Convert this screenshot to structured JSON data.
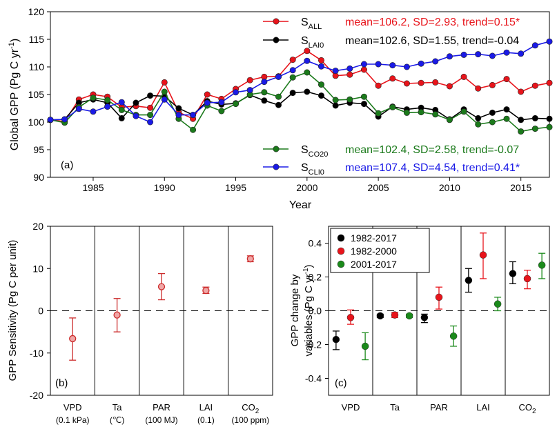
{
  "chart_data": [
    {
      "panel": "(a)",
      "type": "line",
      "xlabel": "Year",
      "ylabel": "Global GPP (Pg C yr",
      "ylabel_sup": "-1",
      "ylabel_end": ")",
      "xlim": [
        1982,
        2017
      ],
      "ylim": [
        90,
        120
      ],
      "xticks": [
        1985,
        1990,
        1995,
        2000,
        2005,
        2010,
        2015
      ],
      "yticks": [
        90,
        95,
        100,
        105,
        110,
        115,
        120
      ],
      "x": [
        1982,
        1983,
        1984,
        1985,
        1986,
        1987,
        1988,
        1989,
        1990,
        1991,
        1992,
        1993,
        1994,
        1995,
        1996,
        1997,
        1998,
        1999,
        2000,
        2001,
        2002,
        2003,
        2004,
        2005,
        2006,
        2007,
        2008,
        2009,
        2010,
        2011,
        2012,
        2013,
        2014,
        2015,
        2016,
        2017
      ],
      "series": [
        {
          "name": "S",
          "sub": "ALL",
          "color": "#e8141b",
          "stats": "mean=106.2, SD=2.93, trend=0.15*",
          "values": [
            100.4,
            100.1,
            104.1,
            105.0,
            104.6,
            102.7,
            102.9,
            102.6,
            107.2,
            101.8,
            100.6,
            105.0,
            104.2,
            106.0,
            107.6,
            108.2,
            108.3,
            111.3,
            112.9,
            111.2,
            108.4,
            108.6,
            109.5,
            106.6,
            107.9,
            107.0,
            107.1,
            107.2,
            106.5,
            108.2,
            106.1,
            106.7,
            107.8,
            105.5,
            106.6,
            107.1
          ]
        },
        {
          "name": "S",
          "sub": "LAI0",
          "color": "#000000",
          "stats": "mean=102.6, SD=1.55, trend=-0.04",
          "values": [
            100.4,
            100.5,
            103.5,
            104.1,
            103.5,
            100.7,
            103.5,
            104.8,
            104.7,
            102.5,
            101.3,
            103.8,
            103.2,
            103.4,
            104.9,
            103.9,
            103.1,
            105.3,
            105.5,
            104.8,
            103.0,
            103.5,
            103.3,
            101.0,
            102.8,
            102.3,
            102.6,
            102.2,
            100.5,
            102.3,
            100.7,
            101.7,
            102.3,
            100.4,
            100.7,
            100.6
          ]
        },
        {
          "name": "S",
          "sub": "CO20",
          "color": "#1b7a1b",
          "stats": "mean=102.4, SD=2.58, trend=-0.07",
          "values": [
            100.4,
            99.9,
            102.7,
            104.4,
            104.0,
            102.2,
            101.3,
            101.3,
            105.5,
            100.6,
            98.6,
            103.0,
            102.0,
            103.3,
            105.0,
            105.4,
            104.6,
            108.1,
            109.0,
            106.8,
            104.0,
            104.1,
            104.6,
            101.6,
            102.7,
            101.7,
            101.8,
            101.4,
            100.4,
            101.9,
            99.6,
            100.0,
            100.6,
            98.3,
            98.8,
            99.1
          ]
        },
        {
          "name": "S",
          "sub": "CLI0",
          "color": "#1a1ae6",
          "stats": "mean=107.4, SD=4.54, trend=0.41*",
          "values": [
            100.4,
            100.5,
            102.4,
            101.9,
            102.8,
            103.6,
            101.1,
            100.0,
            104.1,
            101.3,
            101.3,
            103.5,
            103.6,
            105.4,
            105.8,
            107.3,
            108.2,
            109.4,
            111.1,
            110.1,
            109.3,
            109.7,
            110.5,
            110.5,
            110.3,
            110.0,
            110.6,
            111.0,
            111.9,
            112.2,
            112.3,
            112.0,
            112.6,
            112.4,
            113.9,
            114.6
          ]
        }
      ]
    },
    {
      "panel": "(b)",
      "type": "scatter",
      "ylabel": "GPP Sensitivity (Pg C per unit)",
      "ylim": [
        -20,
        20
      ],
      "yticks": [
        -20,
        -10,
        0,
        10,
        20
      ],
      "categories": [
        "VPD",
        "Ta",
        "PAR",
        "LAI",
        "CO"
      ],
      "units": [
        "(0.1 kPa)",
        "(℃)",
        "(100 MJ)",
        "(0.1)",
        "(100 ppm)"
      ],
      "values": [
        -6.6,
        -1.0,
        5.7,
        4.8,
        12.3
      ],
      "err_low": [
        -11.7,
        -5.0,
        2.6,
        4.1,
        11.6
      ],
      "err_high": [
        -1.7,
        2.9,
        8.8,
        5.6,
        13.0
      ],
      "color": "#cc2b2b"
    },
    {
      "panel": "(c)",
      "type": "scatter",
      "ylabel_line1": "GPP change by",
      "ylabel_line2": "variables (Pg C yr",
      "ylabel_sup": "-1",
      "ylabel_end": ")",
      "ylim": [
        -0.5,
        0.5
      ],
      "yticks": [
        -0.4,
        -0.2,
        0.0,
        0.2,
        0.4
      ],
      "ytick_labels": [
        "-0.4",
        "-0.2",
        "0.0",
        "0.2",
        "0.4"
      ],
      "categories": [
        "VPD",
        "Ta",
        "PAR",
        "LAI",
        "CO"
      ],
      "series": [
        {
          "name": "1982-2017",
          "color": "#000000",
          "values": [
            -0.17,
            -0.03,
            -0.04,
            0.18,
            0.22
          ],
          "err_low": [
            -0.23,
            -0.04,
            -0.07,
            0.11,
            0.16
          ],
          "err_high": [
            -0.12,
            -0.02,
            -0.02,
            0.25,
            0.29
          ]
        },
        {
          "name": "1982-2000",
          "color": "#e8141b",
          "values": [
            -0.04,
            -0.025,
            0.08,
            0.33,
            0.19
          ],
          "err_low": [
            -0.08,
            -0.04,
            0.01,
            0.19,
            0.13
          ],
          "err_high": [
            0.005,
            -0.01,
            0.14,
            0.46,
            0.24
          ]
        },
        {
          "name": "2001-2017",
          "color": "#1b8a1b",
          "values": [
            -0.21,
            -0.03,
            -0.15,
            0.04,
            0.27
          ],
          "err_low": [
            -0.29,
            -0.04,
            -0.21,
            0.0,
            0.19
          ],
          "err_high": [
            -0.13,
            -0.02,
            -0.09,
            0.08,
            0.34
          ]
        }
      ]
    }
  ],
  "sub_two": "2"
}
